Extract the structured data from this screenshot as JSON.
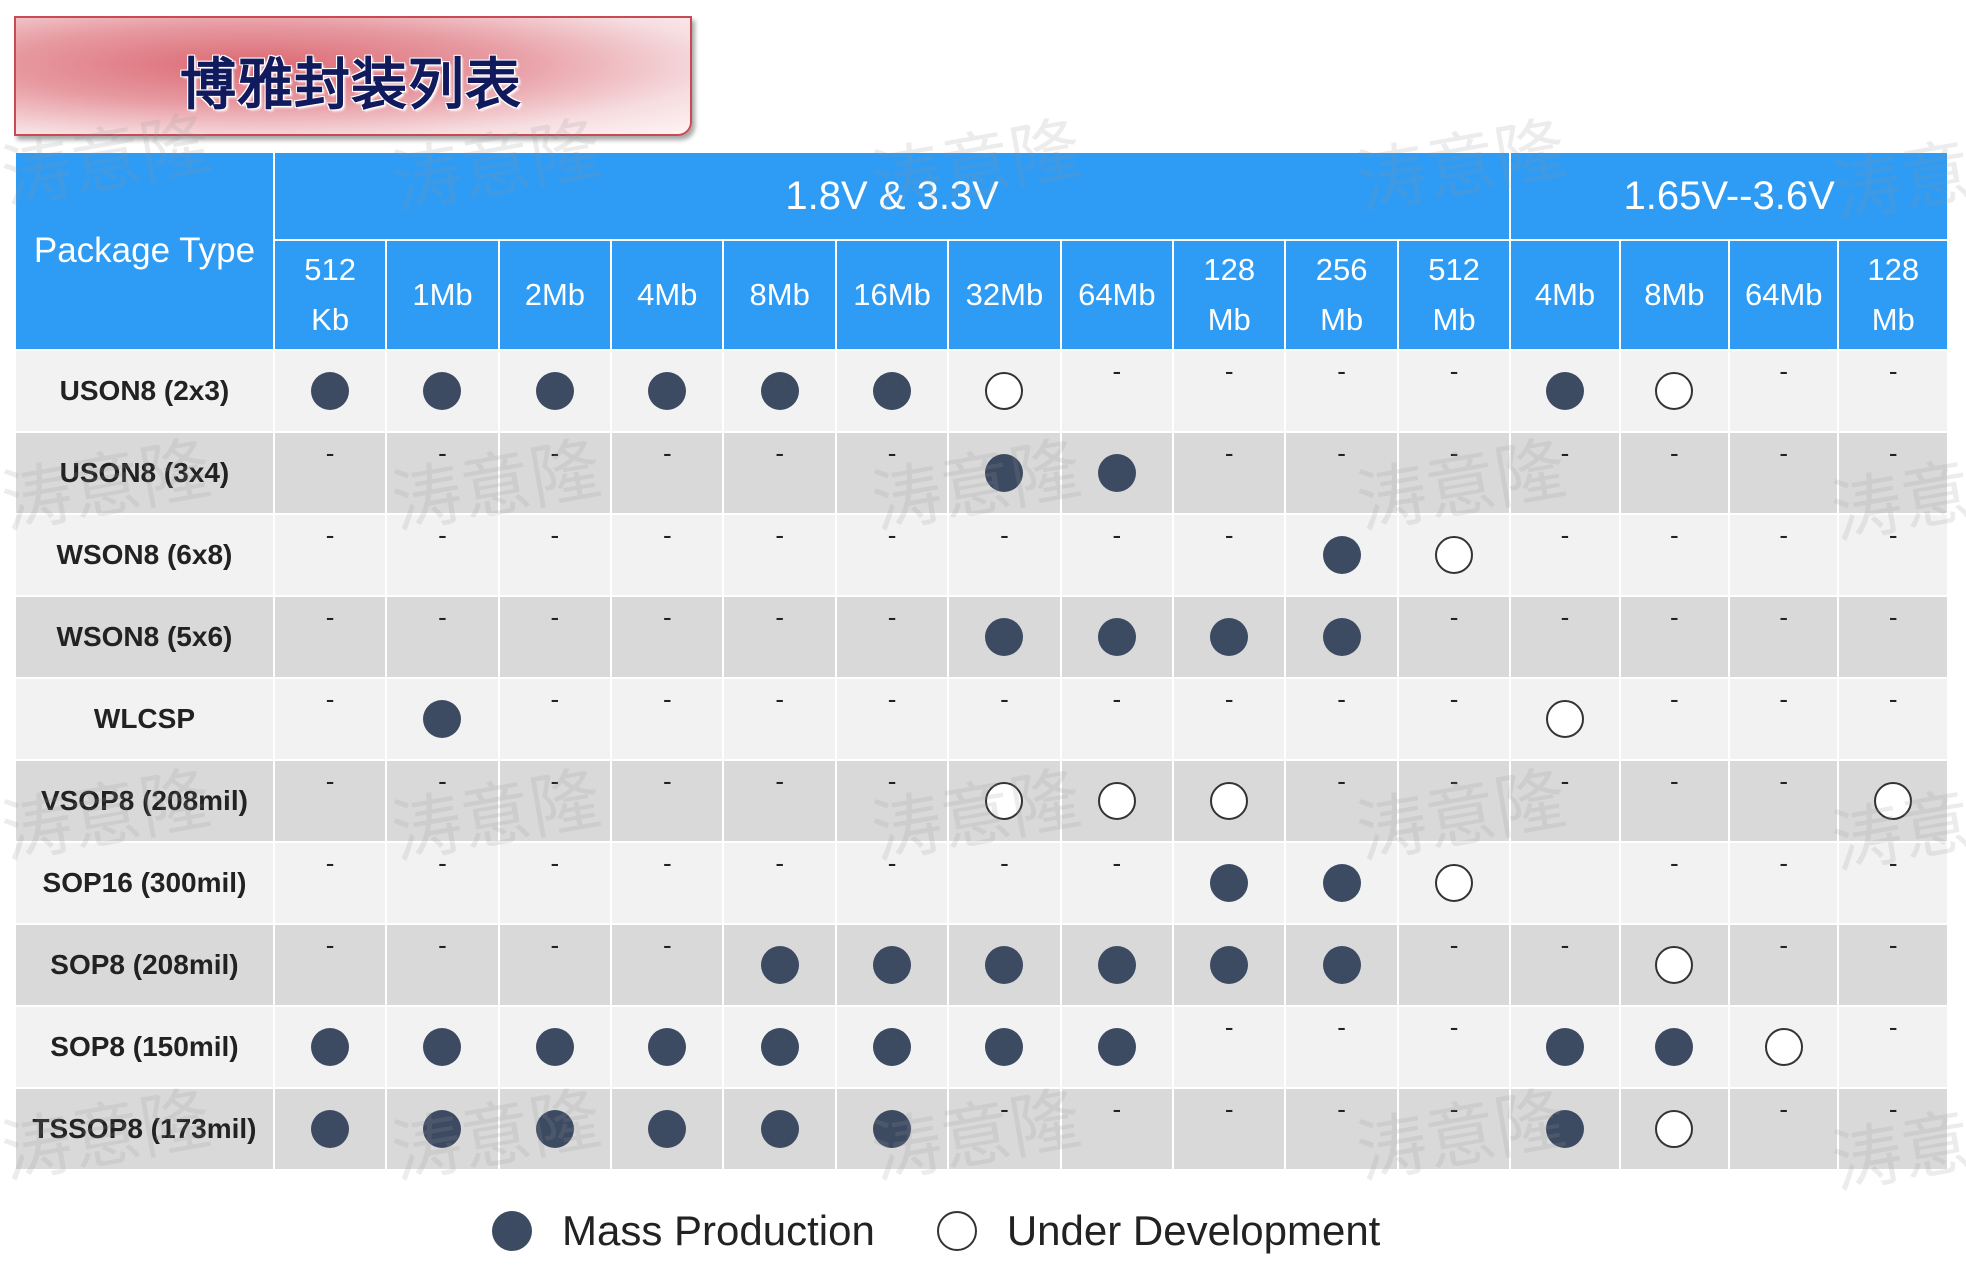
{
  "title": "博雅封装列表",
  "watermark": "涛意隆",
  "table": {
    "corner_label": "Package Type",
    "groups": [
      {
        "label": "1.8V & 3.3V",
        "span": 11
      },
      {
        "label": "1.65V--3.6V",
        "span": 4
      }
    ],
    "capacities": [
      "512\nKb",
      "1Mb",
      "2Mb",
      "4Mb",
      "8Mb",
      "16Mb",
      "32Mb",
      "64Mb",
      "128\nMb",
      "256\nMb",
      "512\nMb",
      "4Mb",
      "8Mb",
      "64Mb",
      "128\nMb"
    ],
    "rows": [
      {
        "package": "USON8 (2x3)",
        "cells": [
          "M",
          "M",
          "M",
          "M",
          "M",
          "M",
          "D",
          "-",
          "-",
          "-",
          "-",
          "M",
          "D",
          "-",
          "-"
        ]
      },
      {
        "package": "USON8 (3x4)",
        "cells": [
          "-",
          "-",
          "-",
          "-",
          "-",
          "-",
          "M",
          "M",
          "-",
          "-",
          "-",
          "-",
          "-",
          "-",
          "-"
        ]
      },
      {
        "package": "WSON8 (6x8)",
        "cells": [
          "-",
          "-",
          "-",
          "-",
          "-",
          "-",
          "-",
          "-",
          "-",
          "M",
          "D",
          "-",
          "-",
          "-",
          "-"
        ]
      },
      {
        "package": "WSON8 (5x6)",
        "cells": [
          "-",
          "-",
          "-",
          "-",
          "-",
          "-",
          "M",
          "M",
          "M",
          "M",
          "-",
          "-",
          "-",
          "-",
          "-"
        ]
      },
      {
        "package": "WLCSP",
        "cells": [
          "-",
          "M",
          "-",
          "-",
          "-",
          "-",
          "-",
          "-",
          "-",
          "-",
          "-",
          "D",
          "-",
          "-",
          "-"
        ]
      },
      {
        "package": "VSOP8 (208mil)",
        "cells": [
          "-",
          "-",
          "-",
          "-",
          "-",
          "-",
          "D",
          "D",
          "D",
          "-",
          "-",
          "-",
          "-",
          "-",
          "D"
        ]
      },
      {
        "package": "SOP16 (300mil)",
        "cells": [
          "-",
          "-",
          "-",
          "-",
          "-",
          "-",
          "-",
          "-",
          "M",
          "M",
          "D",
          "",
          "-",
          "-",
          "-"
        ]
      },
      {
        "package": "SOP8 (208mil)",
        "cells": [
          "-",
          "-",
          "-",
          "-",
          "M",
          "M",
          "M",
          "M",
          "M",
          "M",
          "-",
          "-",
          "D",
          "-",
          "-"
        ]
      },
      {
        "package": "SOP8 (150mil)",
        "cells": [
          "M",
          "M",
          "M",
          "M",
          "M",
          "M",
          "M",
          "M",
          "-",
          "-",
          "-",
          "M",
          "M",
          "D",
          "-"
        ]
      },
      {
        "package": "TSSOP8 (173mil)",
        "cells": [
          "M",
          "M",
          "M",
          "M",
          "M",
          "M",
          "-",
          "-",
          "-",
          "-",
          "-",
          "M",
          "D",
          "-",
          "-"
        ]
      }
    ],
    "symbols": {
      "M": "Mass Production",
      "D": "Under Development",
      "-": "-"
    }
  },
  "legend": {
    "mass_label": "Mass Production",
    "dev_label": "Under Development"
  },
  "colors": {
    "header_blue": "#2e9cf5",
    "row_light": "#f2f2f2",
    "row_dark": "#d9d9d9",
    "mass_dot": "#3c4a62",
    "title_text": "#101a5c"
  }
}
